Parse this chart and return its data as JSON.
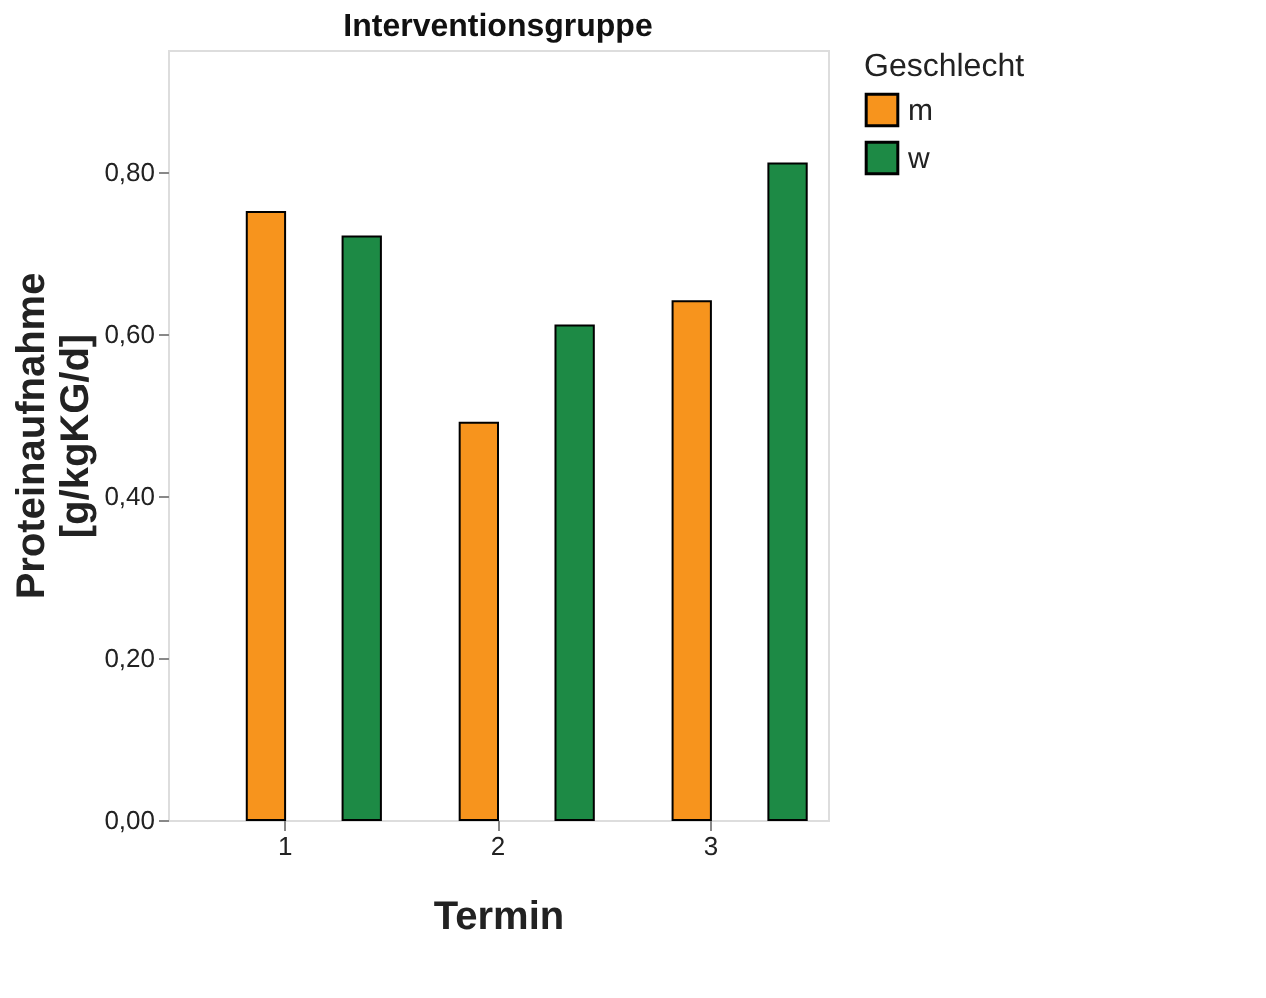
{
  "chart_data": {
    "type": "bar",
    "title": "Interventionsgruppe",
    "xlabel": "Termin",
    "ylabel": "Proteinaufnahme\n[g/kgKG/d]",
    "legend_title": "Geschlecht",
    "legend": "top right",
    "grid": false,
    "categories": [
      "1",
      "2",
      "3"
    ],
    "series": [
      {
        "name": "m",
        "color": "#f7941d",
        "values": [
          0.75,
          0.49,
          0.64
        ]
      },
      {
        "name": "w",
        "color": "#1d8a45",
        "values": [
          0.72,
          0.61,
          0.81
        ]
      }
    ],
    "ylim": [
      0,
      0.95
    ],
    "yticks": [
      {
        "value": 0,
        "label": "0,00"
      },
      {
        "value": 0.2,
        "label": "0,20"
      },
      {
        "value": 0.4,
        "label": "0,40"
      },
      {
        "value": 0.6,
        "label": "0,60"
      },
      {
        "value": 0.8,
        "label": "0,80"
      }
    ]
  }
}
